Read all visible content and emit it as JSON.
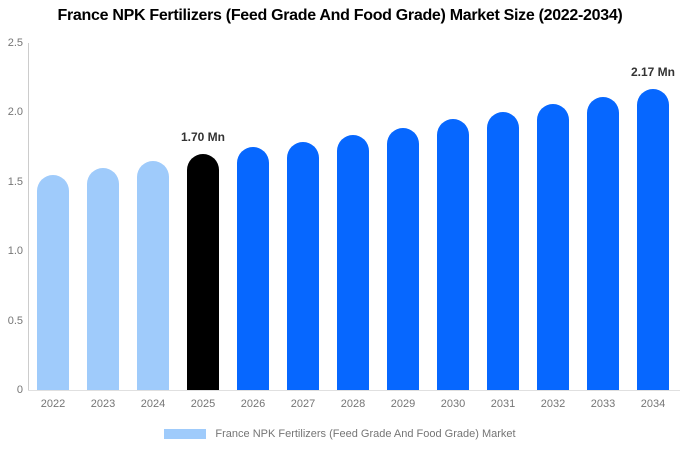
{
  "title": "France NPK Fertilizers (Feed Grade And Food Grade) Market Size (2022-2034)",
  "chart_data": {
    "type": "bar",
    "categories": [
      "2022",
      "2023",
      "2024",
      "2025",
      "2026",
      "2027",
      "2028",
      "2029",
      "2030",
      "2031",
      "2032",
      "2033",
      "2034"
    ],
    "values": [
      1.55,
      1.6,
      1.65,
      1.7,
      1.75,
      1.79,
      1.84,
      1.89,
      1.95,
      2.0,
      2.06,
      2.11,
      2.17
    ],
    "bar_types": [
      "historical",
      "historical",
      "historical",
      "current",
      "forecast",
      "forecast",
      "forecast",
      "forecast",
      "forecast",
      "forecast",
      "forecast",
      "forecast",
      "forecast"
    ],
    "colors": {
      "historical": "#9FCBFB",
      "current": "#000000",
      "forecast": "#0667FF"
    },
    "data_labels": [
      {
        "category": "2025",
        "text": "1.70 Mn"
      },
      {
        "category": "2034",
        "text": "2.17 Mn"
      }
    ],
    "title": "France NPK Fertilizers (Feed Grade And Food Grade) Market Size (2022-2034)",
    "xlabel": "",
    "ylabel": "",
    "ylim": [
      0,
      2.5
    ],
    "yticks": [
      0,
      0.5,
      1.0,
      1.5,
      2.0,
      2.5
    ],
    "ytick_labels": [
      "0",
      "0.5",
      "1.0",
      "1.5",
      "2.0",
      "2.5"
    ],
    "grid": false,
    "legend_position": "bottom-center",
    "legend": [
      {
        "label": "France NPK Fertilizers (Feed Grade And Food Grade) Market",
        "swatch_color": "#9FCBFB"
      }
    ],
    "axis_text_color": "#757575",
    "data_label_color": "#333333"
  }
}
